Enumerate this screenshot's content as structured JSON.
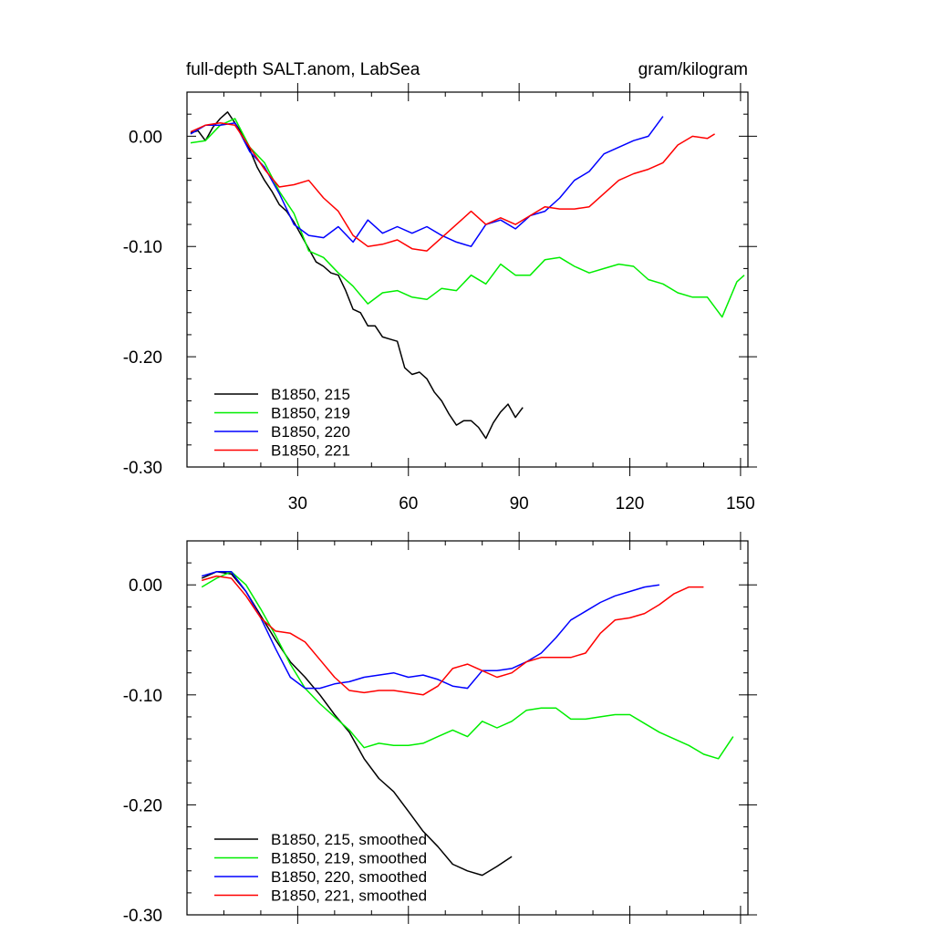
{
  "figure": {
    "title_left": "full-depth SALT.anom, LabSea",
    "title_right": "gram/kilogram"
  },
  "chart_data": [
    {
      "type": "line",
      "xlim": [
        0,
        152
      ],
      "ylim": [
        -0.3,
        0.04
      ],
      "xticks": [
        30,
        60,
        90,
        120,
        150
      ],
      "yticks": [
        0.0,
        -0.1,
        -0.2,
        -0.3
      ],
      "ytick_labels": [
        "0.00",
        "-0.10",
        "-0.20",
        "-0.30"
      ],
      "xtick_labels": [
        "30",
        "60",
        "90",
        "120",
        "150"
      ],
      "legend_position": "bottom-left",
      "series": [
        {
          "name": "B1850, 215",
          "color": "#000000",
          "x": [
            1,
            3,
            5,
            7,
            9,
            11,
            13,
            15,
            17,
            19,
            21,
            23,
            25,
            27,
            29,
            31,
            33,
            35,
            37,
            39,
            41,
            43,
            45,
            47,
            49,
            51,
            53,
            55,
            57,
            59,
            61,
            63,
            65,
            67,
            69,
            71,
            73,
            75,
            77,
            79,
            81,
            83,
            85,
            87,
            89,
            91
          ],
          "values": [
            0.003,
            0.005,
            -0.004,
            0.008,
            0.016,
            0.022,
            0.012,
            0.002,
            -0.012,
            -0.028,
            -0.04,
            -0.05,
            -0.062,
            -0.068,
            -0.078,
            -0.09,
            -0.102,
            -0.114,
            -0.118,
            -0.124,
            -0.126,
            -0.14,
            -0.157,
            -0.16,
            -0.172,
            -0.172,
            -0.182,
            -0.184,
            -0.186,
            -0.21,
            -0.216,
            -0.214,
            -0.22,
            -0.232,
            -0.24,
            -0.252,
            -0.262,
            -0.258,
            -0.258,
            -0.264,
            -0.274,
            -0.26,
            -0.25,
            -0.243,
            -0.255,
            -0.246
          ]
        },
        {
          "name": "B1850, 219",
          "color": "#00ee00",
          "x": [
            1,
            5,
            9,
            13,
            17,
            21,
            25,
            29,
            33,
            37,
            41,
            45,
            49,
            53,
            57,
            61,
            65,
            69,
            73,
            77,
            81,
            85,
            89,
            93,
            97,
            101,
            105,
            109,
            113,
            117,
            121,
            125,
            129,
            133,
            137,
            141,
            145,
            149,
            151
          ],
          "values": [
            -0.006,
            -0.004,
            0.01,
            0.016,
            -0.01,
            -0.024,
            -0.05,
            -0.07,
            -0.104,
            -0.11,
            -0.124,
            -0.136,
            -0.152,
            -0.142,
            -0.14,
            -0.146,
            -0.148,
            -0.138,
            -0.14,
            -0.126,
            -0.134,
            -0.116,
            -0.126,
            -0.126,
            -0.112,
            -0.11,
            -0.118,
            -0.124,
            -0.12,
            -0.116,
            -0.118,
            -0.13,
            -0.134,
            -0.142,
            -0.146,
            -0.146,
            -0.164,
            -0.132,
            -0.126
          ]
        },
        {
          "name": "B1850, 220",
          "color": "#0000ff",
          "x": [
            1,
            5,
            9,
            13,
            17,
            21,
            25,
            29,
            33,
            37,
            41,
            45,
            49,
            53,
            57,
            61,
            65,
            69,
            73,
            77,
            81,
            85,
            89,
            93,
            97,
            101,
            105,
            109,
            113,
            117,
            121,
            125,
            129
          ],
          "values": [
            0.002,
            0.01,
            0.01,
            0.012,
            -0.014,
            -0.028,
            -0.052,
            -0.08,
            -0.09,
            -0.092,
            -0.082,
            -0.096,
            -0.076,
            -0.088,
            -0.082,
            -0.088,
            -0.082,
            -0.09,
            -0.096,
            -0.1,
            -0.08,
            -0.076,
            -0.084,
            -0.072,
            -0.068,
            -0.056,
            -0.04,
            -0.032,
            -0.016,
            -0.01,
            -0.004,
            0.0,
            0.018
          ]
        },
        {
          "name": "B1850, 221",
          "color": "#ff0000",
          "x": [
            1,
            5,
            9,
            13,
            17,
            21,
            25,
            29,
            33,
            37,
            41,
            45,
            49,
            53,
            57,
            61,
            65,
            69,
            73,
            77,
            81,
            85,
            89,
            93,
            97,
            101,
            105,
            109,
            113,
            117,
            121,
            125,
            129,
            133,
            137,
            141,
            143
          ],
          "values": [
            0.004,
            0.01,
            0.012,
            0.01,
            -0.01,
            -0.03,
            -0.046,
            -0.044,
            -0.04,
            -0.056,
            -0.068,
            -0.09,
            -0.1,
            -0.098,
            -0.094,
            -0.102,
            -0.104,
            -0.092,
            -0.08,
            -0.068,
            -0.08,
            -0.074,
            -0.08,
            -0.072,
            -0.064,
            -0.066,
            -0.066,
            -0.064,
            -0.052,
            -0.04,
            -0.034,
            -0.03,
            -0.024,
            -0.008,
            0.0,
            -0.002,
            0.002
          ]
        }
      ]
    },
    {
      "type": "line",
      "xlim": [
        0,
        152
      ],
      "ylim": [
        -0.3,
        0.04
      ],
      "xticks": [
        30,
        60,
        90,
        120,
        150
      ],
      "yticks": [
        0.0,
        -0.1,
        -0.2,
        -0.3
      ],
      "ytick_labels": [
        "0.00",
        "-0.10",
        "-0.20",
        "-0.30"
      ],
      "legend_position": "bottom-left",
      "series": [
        {
          "name": "B1850, 215, smoothed",
          "color": "#000000",
          "x": [
            4,
            8,
            12,
            16,
            20,
            24,
            28,
            32,
            36,
            40,
            44,
            48,
            52,
            56,
            60,
            64,
            68,
            72,
            76,
            80,
            84,
            88
          ],
          "values": [
            0.006,
            0.012,
            0.01,
            -0.006,
            -0.028,
            -0.05,
            -0.07,
            -0.084,
            -0.1,
            -0.118,
            -0.134,
            -0.158,
            -0.176,
            -0.188,
            -0.206,
            -0.224,
            -0.238,
            -0.254,
            -0.26,
            -0.264,
            -0.256,
            -0.247
          ]
        },
        {
          "name": "B1850, 219, smoothed",
          "color": "#00ee00",
          "x": [
            4,
            8,
            12,
            16,
            20,
            24,
            28,
            32,
            36,
            40,
            44,
            48,
            52,
            56,
            60,
            64,
            68,
            72,
            76,
            80,
            84,
            88,
            92,
            96,
            100,
            104,
            108,
            112,
            116,
            120,
            124,
            128,
            132,
            136,
            140,
            144,
            148
          ],
          "values": [
            -0.002,
            0.006,
            0.012,
            0.0,
            -0.022,
            -0.046,
            -0.072,
            -0.094,
            -0.108,
            -0.12,
            -0.132,
            -0.148,
            -0.144,
            -0.146,
            -0.146,
            -0.144,
            -0.138,
            -0.132,
            -0.138,
            -0.124,
            -0.13,
            -0.124,
            -0.114,
            -0.112,
            -0.112,
            -0.122,
            -0.122,
            -0.12,
            -0.118,
            -0.118,
            -0.126,
            -0.134,
            -0.14,
            -0.146,
            -0.154,
            -0.158,
            -0.138
          ]
        },
        {
          "name": "B1850, 220, smoothed",
          "color": "#0000ff",
          "x": [
            4,
            8,
            12,
            16,
            20,
            24,
            28,
            32,
            36,
            40,
            44,
            48,
            52,
            56,
            60,
            64,
            68,
            72,
            76,
            80,
            84,
            88,
            92,
            96,
            100,
            104,
            108,
            112,
            116,
            120,
            124,
            128
          ],
          "values": [
            0.008,
            0.012,
            0.012,
            -0.006,
            -0.03,
            -0.058,
            -0.084,
            -0.094,
            -0.094,
            -0.09,
            -0.088,
            -0.084,
            -0.082,
            -0.08,
            -0.084,
            -0.082,
            -0.086,
            -0.092,
            -0.094,
            -0.078,
            -0.078,
            -0.076,
            -0.07,
            -0.062,
            -0.048,
            -0.032,
            -0.024,
            -0.016,
            -0.01,
            -0.006,
            -0.002,
            0.0
          ]
        },
        {
          "name": "B1850, 221, smoothed",
          "color": "#ff0000",
          "x": [
            4,
            8,
            12,
            16,
            20,
            24,
            28,
            32,
            36,
            40,
            44,
            48,
            52,
            56,
            60,
            64,
            68,
            72,
            76,
            80,
            84,
            88,
            92,
            96,
            100,
            104,
            108,
            112,
            116,
            120,
            124,
            128,
            132,
            136,
            140
          ],
          "values": [
            0.004,
            0.008,
            0.006,
            -0.01,
            -0.03,
            -0.042,
            -0.044,
            -0.052,
            -0.068,
            -0.084,
            -0.096,
            -0.098,
            -0.096,
            -0.096,
            -0.098,
            -0.1,
            -0.092,
            -0.076,
            -0.072,
            -0.078,
            -0.084,
            -0.08,
            -0.07,
            -0.066,
            -0.066,
            -0.066,
            -0.062,
            -0.044,
            -0.032,
            -0.03,
            -0.026,
            -0.018,
            -0.008,
            -0.002,
            -0.002
          ]
        }
      ]
    }
  ]
}
